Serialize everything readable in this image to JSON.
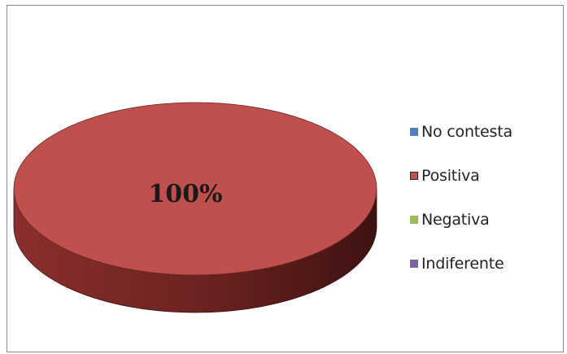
{
  "chart_data": {
    "type": "pie",
    "title": "",
    "categories": [
      "No contesta",
      "Positiva",
      "Negativa",
      "Indiferente"
    ],
    "values": [
      0,
      100,
      0,
      0
    ],
    "data_labels": [
      "",
      "100%",
      "",
      ""
    ],
    "colors": [
      "#4f81bd",
      "#c0504d",
      "#9bbb59",
      "#8064a2"
    ],
    "side_color_dark": "#5a1b1a",
    "legend_position": "right",
    "three_d": true
  },
  "legend": {
    "items": [
      {
        "label": "No contesta",
        "color": "#4f81bd",
        "border": "#4f81bd"
      },
      {
        "label": "Positiva",
        "color": "#c0504d",
        "border": "#222222"
      },
      {
        "label": "Negativa",
        "color": "#9bbb59",
        "border": "#9bbb59"
      },
      {
        "label": "Indiferente",
        "color": "#8064a2",
        "border": "#8064a2"
      }
    ]
  },
  "data_label": "100%"
}
